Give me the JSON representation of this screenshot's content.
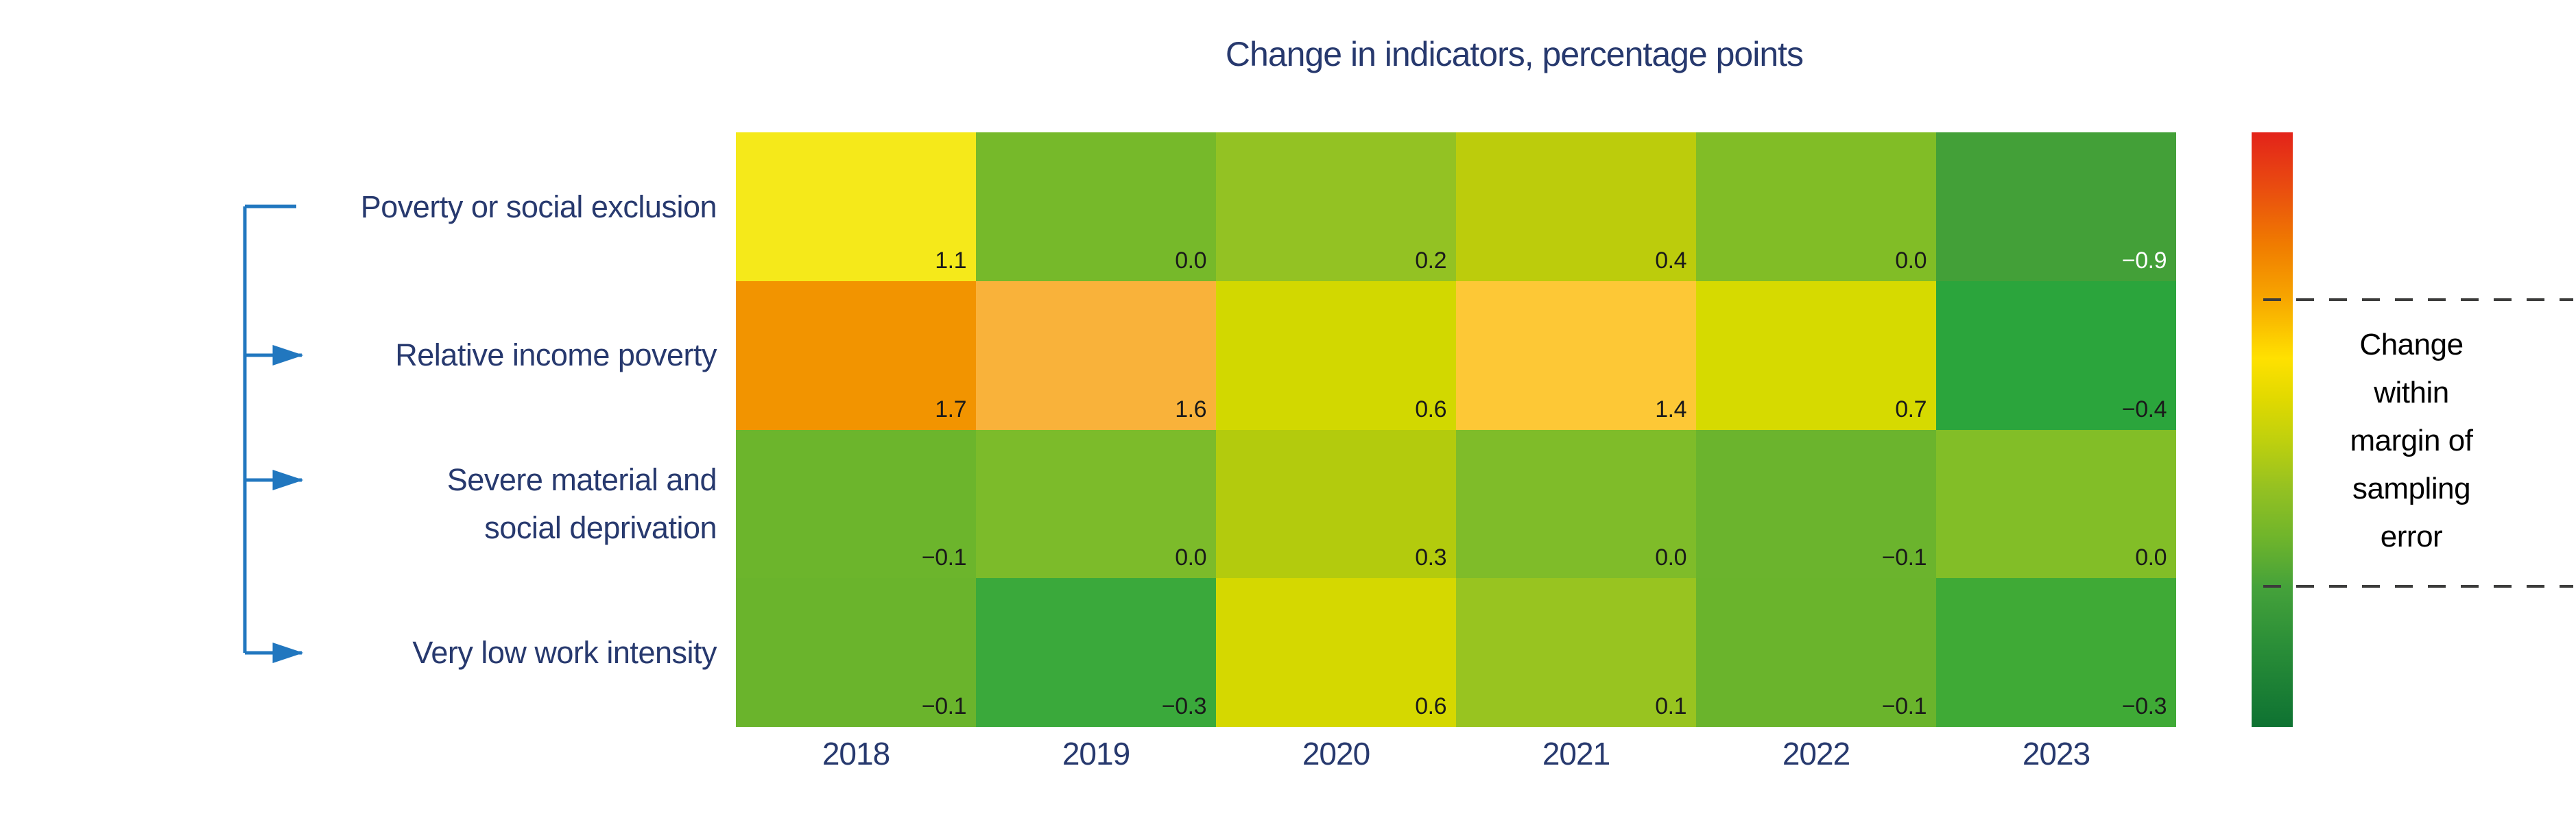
{
  "title": "Change in indicators, percentage points",
  "colors": {
    "navy": "#27396e",
    "arrow_blue": "#2177bf",
    "dash_gray": "#3c3c3b",
    "value_text_dark": "#1a1a1a",
    "value_text_light": "#ffffff"
  },
  "chart_data": {
    "type": "heatmap",
    "title": "Change in indicators, percentage points",
    "unit": "percentage points",
    "categories_x": [
      "2018",
      "2019",
      "2020",
      "2021",
      "2022",
      "2023"
    ],
    "rows": [
      {
        "label": "Poverty or social exclusion",
        "label_display": "Poverty or social exclusion",
        "connector": "line",
        "values": [
          1.1,
          0.0,
          0.2,
          0.4,
          0.0,
          -0.9
        ],
        "display": [
          "1.1",
          "0.0",
          "0.2",
          "0.4",
          "0.0",
          "−0.9"
        ],
        "cell_colors": [
          "#f5e91a",
          "#76b92a",
          "#93c223",
          "#bccc0c",
          "#81bd26",
          "#43a038"
        ],
        "text_colors": [
          "#1a1a1a",
          "#1a1a1a",
          "#1a1a1a",
          "#1a1a1a",
          "#1a1a1a",
          "#ffffff"
        ]
      },
      {
        "label": "Relative income poverty",
        "label_display": "Relative income poverty",
        "connector": "arrow",
        "values": [
          1.7,
          1.6,
          0.6,
          1.4,
          0.7,
          -0.4
        ],
        "display": [
          "1.7",
          "1.6",
          "0.6",
          "1.4",
          "0.7",
          "−0.4"
        ],
        "cell_colors": [
          "#f29400",
          "#f9b23a",
          "#d2d800",
          "#fdc836",
          "#d6da00",
          "#2ba53c"
        ],
        "text_colors": [
          "#1a1a1a",
          "#1a1a1a",
          "#1a1a1a",
          "#1a1a1a",
          "#1a1a1a",
          "#1a1a1a"
        ]
      },
      {
        "label": "Severe material and social deprivation",
        "label_display": "Severe material and\nsocial deprivation",
        "connector": "arrow",
        "values": [
          -0.1,
          0.0,
          0.3,
          0.0,
          -0.1,
          0.0
        ],
        "display": [
          "−0.1",
          "0.0",
          "0.3",
          "0.0",
          "−0.1",
          "0.0"
        ],
        "cell_colors": [
          "#6cb52c",
          "#7cbb2a",
          "#b3cb0d",
          "#7fbc29",
          "#6bb42d",
          "#82be27"
        ],
        "text_colors": [
          "#1a1a1a",
          "#1a1a1a",
          "#1a1a1a",
          "#1a1a1a",
          "#1a1a1a",
          "#1a1a1a"
        ]
      },
      {
        "label": "Very low work intensity",
        "label_display": "Very low work intensity",
        "connector": "arrow",
        "values": [
          -0.1,
          -0.3,
          0.6,
          0.1,
          -0.1,
          -0.3
        ],
        "display": [
          "−0.1",
          "−0.3",
          "0.6",
          "0.1",
          "−0.1",
          "−0.3"
        ],
        "cell_colors": [
          "#6ab42c",
          "#3aa93b",
          "#d5d800",
          "#98c420",
          "#6ab42c",
          "#3faa36"
        ],
        "text_colors": [
          "#1a1a1a",
          "#1a1a1a",
          "#1a1a1a",
          "#1a1a1a",
          "#1a1a1a",
          "#1a1a1a"
        ]
      }
    ],
    "legend": {
      "label": "Change within margin of sampling error",
      "position": "right",
      "colorbar_gradient": [
        {
          "pos": 0.0,
          "color": "#e3231a"
        },
        {
          "pos": 0.09,
          "color": "#e94b10"
        },
        {
          "pos": 0.19,
          "color": "#f07c00"
        },
        {
          "pos": 0.28,
          "color": "#f7a600"
        },
        {
          "pos": 0.38,
          "color": "#ffe100"
        },
        {
          "pos": 0.45,
          "color": "#e0d900"
        },
        {
          "pos": 0.52,
          "color": "#bed00e"
        },
        {
          "pos": 0.6,
          "color": "#94c122"
        },
        {
          "pos": 0.68,
          "color": "#70b52b"
        },
        {
          "pos": 0.765,
          "color": "#45a23a"
        },
        {
          "pos": 0.86,
          "color": "#2b8f38"
        },
        {
          "pos": 1.0,
          "color": "#0e7232"
        }
      ],
      "dashed_marker_positions_pct": [
        28.1,
        76.4
      ]
    },
    "layout": {
      "grid": "off",
      "legend_position": "right"
    }
  }
}
